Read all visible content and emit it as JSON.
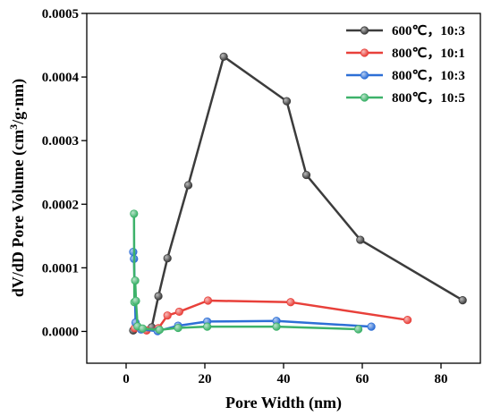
{
  "chart_data": {
    "type": "line",
    "xlabel": "Pore Width (nm)",
    "ylabel_main": "dV/dD Pore Volume (cm",
    "ylabel_sup": "3",
    "ylabel_tail": "/g·nm)",
    "xlim": [
      -10,
      90
    ],
    "ylim": [
      -5e-05,
      0.0005
    ],
    "xticks": [
      0,
      20,
      40,
      60,
      80
    ],
    "xtick_labels": [
      "0",
      "20",
      "40",
      "60",
      "80"
    ],
    "yticks": [
      0,
      0.0001,
      0.0002,
      0.0003,
      0.0004,
      0.0005
    ],
    "ytick_labels": [
      "0.0000",
      "0.0001",
      "0.0002",
      "0.0003",
      "0.0004",
      "0.0005"
    ],
    "legend_position": "top-right",
    "series": [
      {
        "name": "600℃，10:3",
        "color": "#3c3c3c",
        "x": [
          1.8,
          6.5,
          8.2,
          10.5,
          15.8,
          24.8,
          40.8,
          45.8,
          59.5,
          85.5
        ],
        "y": [
          1.5e-06,
          6.5e-06,
          5.55e-05,
          0.000115,
          0.00023,
          0.000432,
          0.000362,
          0.000246,
          0.000144,
          4.9e-05
        ]
      },
      {
        "name": "800℃，10:1",
        "color": "#e8403a",
        "x": [
          2.2,
          5.2,
          8.2,
          10.5,
          13.5,
          20.8,
          41.8,
          71.5
        ],
        "y": [
          5e-06,
          1.5e-06,
          5e-06,
          2.5e-05,
          3.1e-05,
          4.85e-05,
          4.6e-05,
          1.8e-05
        ]
      },
      {
        "name": "800℃，10:3",
        "color": "#2d6fd6",
        "x": [
          1.8,
          2.0,
          2.4,
          3.8,
          8.0,
          13.2,
          20.6,
          38.2,
          62.3
        ],
        "y": [
          0.000125,
          0.000114,
          1.4e-05,
          3e-06,
          5e-07,
          9e-06,
          1.55e-05,
          1.65e-05,
          7.5e-06
        ]
      },
      {
        "name": "800℃，10:5",
        "color": "#3db26a",
        "x": [
          2.0,
          2.1,
          2.3,
          2.5,
          2.9,
          4.2,
          8.5,
          13.2,
          20.6,
          38.2,
          59.0
        ],
        "y": [
          0.000185,
          4.6e-05,
          8e-05,
          4.8e-05,
          8e-06,
          4.5e-06,
          2.5e-06,
          5.5e-06,
          7.5e-06,
          7.5e-06,
          3.5e-06
        ]
      }
    ]
  }
}
